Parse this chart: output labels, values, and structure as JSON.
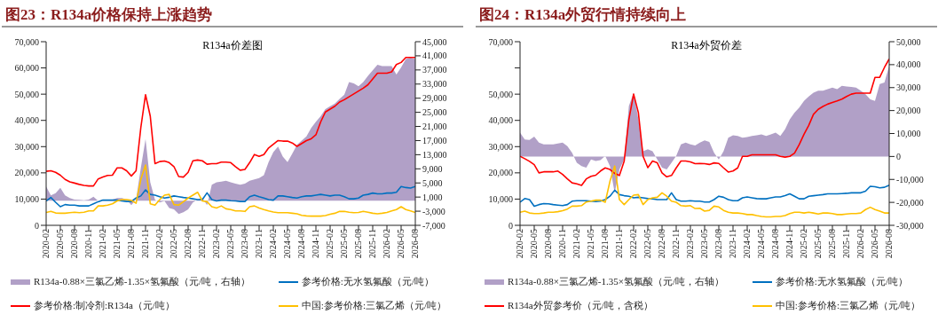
{
  "chart_data": [
    {
      "type": "line",
      "title": "图23：R134a价格保持上涨趋势",
      "subtitle": "R134a价差图",
      "legend": "bottom",
      "x": [
        "2020-02",
        "2020-03",
        "2020-04",
        "2020-05",
        "2020-06",
        "2020-07",
        "2020-08",
        "2020-09",
        "2020-10",
        "2020-11",
        "2020-12",
        "2021-01",
        "2021-02",
        "2021-03",
        "2021-04",
        "2021-05",
        "2021-06",
        "2021-07",
        "2021-08",
        "2021-09",
        "2021-10",
        "2021-11",
        "2021-12",
        "2022-01",
        "2022-02",
        "2022-03",
        "2022-04",
        "2022-05",
        "2022-06",
        "2022-07",
        "2022-08",
        "2022-09",
        "2022-10",
        "2022-11",
        "2022-12",
        "2023-01",
        "2023-02",
        "2023-03",
        "2023-04",
        "2023-05",
        "2023-06",
        "2023-07",
        "2023-08",
        "2023-09",
        "2023-10",
        "2023-11",
        "2023-12",
        "2024-01",
        "2024-02",
        "2024-03",
        "2024-04",
        "2024-05",
        "2024-06",
        "2024-07",
        "2024-08",
        "2024-09",
        "2024-10",
        "2024-11",
        "2024-12",
        "2025-01",
        "2025-02",
        "2025-03",
        "2025-04",
        "2025-05",
        "2025-06",
        "2025-07",
        "2025-08",
        "2025-09",
        "2025-10",
        "2025-11",
        "2025-12",
        "2026-01",
        "2026-02",
        "2026-03",
        "2026-04",
        "2026-05",
        "2026-06",
        "2026-07",
        "2026-08"
      ],
      "xlim": [
        "2020-02",
        "2026-08"
      ],
      "xticks": [
        "2020-02",
        "2020-05",
        "2020-08",
        "2020-11",
        "2021-02",
        "2021-05",
        "2021-08",
        "2021-11",
        "2022-02",
        "2022-05",
        "2022-08",
        "2022-11",
        "2023-02",
        "2023-05",
        "2023-08",
        "2023-11",
        "2024-02",
        "2024-05",
        "2024-08",
        "2024-11",
        "2025-02",
        "2025-05",
        "2025-08",
        "2025-11",
        "2026-02",
        "2026-05",
        "2026-08"
      ],
      "ylim": [
        0,
        70000
      ],
      "yticks": [
        0,
        {
          "value": 10000,
          "label": "10,000"
        },
        {
          "value": 20000,
          "label": "20,000"
        },
        {
          "value": 30000,
          "label": "30,000"
        },
        {
          "value": 40000,
          "label": "40,000"
        },
        {
          "value": 50000,
          "label": "50,000"
        },
        {
          "value": 60000,
          "label": "60,000"
        },
        {
          "value": 70000,
          "label": "70,000"
        }
      ],
      "y2lim": [
        -7000,
        45000
      ],
      "y2ticks": [
        {
          "value": -7000,
          "label": "-7,000"
        },
        {
          "value": -3000,
          "label": "-3,000"
        },
        {
          "value": 1000,
          "label": "1,000"
        },
        {
          "value": 5000,
          "label": "5,000"
        },
        {
          "value": 9000,
          "label": "9,000"
        },
        {
          "value": 13000,
          "label": "13,000"
        },
        {
          "value": 17000,
          "label": "17,000"
        },
        {
          "value": 21000,
          "label": "21,000"
        },
        {
          "value": 25000,
          "label": "25,000"
        },
        {
          "value": 29000,
          "label": "29,000"
        },
        {
          "value": 33000,
          "label": "33,000"
        },
        {
          "value": 37000,
          "label": "37,000"
        },
        {
          "value": 41000,
          "label": "41,000"
        },
        {
          "value": 45000,
          "label": "45,000"
        }
      ],
      "series": [
        {
          "name": "R134a-0.88×三氯乙烯-1.35×氢氟酸（元/吨，右轴）",
          "type": "area",
          "axis": "y2",
          "color": "#b1a0c7",
          "values": [
            4000,
            1500,
            2100,
            3600,
            1500,
            700,
            300,
            200,
            100,
            300,
            1100,
            -100,
            300,
            300,
            300,
            700,
            700,
            300,
            -1300,
            300,
            9200,
            17400,
            5200,
            200,
            -500,
            -100,
            -2100,
            -2500,
            -3800,
            -3300,
            -2500,
            -500,
            300,
            700,
            -1300,
            4500,
            5200,
            5400,
            5600,
            5200,
            4800,
            4500,
            4800,
            5600,
            6000,
            6400,
            7200,
            10900,
            13700,
            15300,
            12500,
            10900,
            13300,
            15800,
            17000,
            18200,
            20600,
            22300,
            23900,
            25900,
            26700,
            27500,
            28800,
            30000,
            33600,
            33200,
            32400,
            33600,
            35300,
            36900,
            38500,
            38100,
            38100,
            38100,
            35700,
            37700,
            40100,
            40500,
            40100
          ]
        },
        {
          "name": "参考价格:无水氢氟酸（元/吨）",
          "color": "#0070c0",
          "values": [
            9300,
            10600,
            8800,
            7100,
            7900,
            7700,
            7700,
            7400,
            7400,
            7400,
            8200,
            9000,
            9600,
            9600,
            9600,
            9600,
            9300,
            9100,
            9100,
            10400,
            11200,
            13500,
            11800,
            11500,
            10900,
            10400,
            10700,
            11200,
            10900,
            10600,
            10400,
            10100,
            9800,
            9800,
            12400,
            9800,
            9300,
            9600,
            9600,
            9400,
            9300,
            9100,
            9100,
            10900,
            11500,
            10900,
            10400,
            9800,
            9600,
            11200,
            11200,
            10900,
            10600,
            10400,
            10900,
            11200,
            11200,
            11500,
            11800,
            11500,
            11200,
            11500,
            11500,
            10900,
            10100,
            10100,
            10400,
            11500,
            11800,
            12300,
            12000,
            12000,
            12300,
            12300,
            12600,
            14800,
            14400,
            14200,
            14800
          ]
        },
        {
          "name": "参考价格:制冷剂:R134a（元/吨）",
          "color": "#ff0000",
          "values": [
            20600,
            20800,
            20200,
            19100,
            17500,
            16600,
            16100,
            15600,
            15200,
            15000,
            15000,
            17700,
            18400,
            19000,
            19100,
            21900,
            21900,
            20800,
            18800,
            20800,
            37200,
            49800,
            41600,
            23500,
            24300,
            24500,
            23900,
            22400,
            18600,
            18400,
            20200,
            24600,
            24900,
            24600,
            23300,
            23500,
            23500,
            24100,
            24100,
            23900,
            22400,
            21000,
            21300,
            23900,
            27000,
            26300,
            27000,
            29500,
            30900,
            32300,
            32100,
            32100,
            31400,
            30100,
            31200,
            32300,
            33000,
            34500,
            39400,
            43200,
            44300,
            45400,
            47000,
            47900,
            49000,
            50100,
            51200,
            52300,
            53600,
            55800,
            58000,
            58000,
            58000,
            58500,
            61300,
            62100,
            64000,
            64000,
            64000
          ]
        },
        {
          "name": "中国:参考价格:三氯乙烯（元/吨）",
          "color": "#ffc000",
          "values": [
            4900,
            5300,
            4700,
            4600,
            4600,
            4800,
            5000,
            4800,
            5000,
            5500,
            5500,
            7400,
            7400,
            7700,
            8200,
            9300,
            9800,
            9800,
            9500,
            8400,
            17500,
            23000,
            8200,
            7700,
            9800,
            11500,
            11800,
            7900,
            7700,
            9000,
            10400,
            11500,
            12600,
            9300,
            9000,
            7100,
            6600,
            7400,
            6300,
            6000,
            5500,
            5500,
            5300,
            7100,
            7400,
            6600,
            6000,
            5500,
            5100,
            4800,
            4800,
            4800,
            4600,
            4400,
            3800,
            3600,
            3500,
            3500,
            3500,
            3700,
            4200,
            4600,
            5300,
            5300,
            5000,
            4800,
            4900,
            5300,
            5000,
            4600,
            4400,
            4600,
            4900,
            5500,
            6000,
            7100,
            6000,
            5500,
            4900
          ]
        }
      ]
    },
    {
      "type": "line",
      "title": "图24：R134a外贸行情持续向上",
      "subtitle": "R134a外贸价差",
      "legend": "bottom",
      "x": [
        "2020-02",
        "2020-03",
        "2020-04",
        "2020-05",
        "2020-06",
        "2020-07",
        "2020-08",
        "2020-09",
        "2020-10",
        "2020-11",
        "2020-12",
        "2021-01",
        "2021-02",
        "2021-03",
        "2021-04",
        "2021-05",
        "2021-06",
        "2021-07",
        "2021-08",
        "2021-09",
        "2021-10",
        "2021-11",
        "2021-12",
        "2022-01",
        "2022-02",
        "2022-03",
        "2022-04",
        "2022-05",
        "2022-06",
        "2022-07",
        "2022-08",
        "2022-09",
        "2022-10",
        "2022-11",
        "2022-12",
        "2023-01",
        "2023-02",
        "2023-03",
        "2023-04",
        "2023-05",
        "2023-06",
        "2023-07",
        "2023-08",
        "2023-09",
        "2023-10",
        "2023-11",
        "2023-12",
        "2024-01",
        "2024-02",
        "2024-03",
        "2024-04",
        "2024-05",
        "2024-06",
        "2024-07",
        "2024-08",
        "2024-09",
        "2024-10",
        "2024-11",
        "2024-12",
        "2025-01",
        "2025-02",
        "2025-03",
        "2025-04",
        "2025-05",
        "2025-06",
        "2025-07",
        "2025-08",
        "2025-09",
        "2025-10",
        "2025-11",
        "2025-12",
        "2026-01",
        "2026-02",
        "2026-03",
        "2026-04",
        "2026-05",
        "2026-06",
        "2026-07",
        "2026-08"
      ],
      "xlim": [
        "2020-02",
        "2026-08"
      ],
      "xticks": [
        "2020-02",
        "2020-05",
        "2020-08",
        "2020-11",
        "2021-02",
        "2021-05",
        "2021-08",
        "2021-11",
        "2022-02",
        "2022-05",
        "2022-08",
        "2022-11",
        "2023-02",
        "2023-05",
        "2023-08",
        "2023-11",
        "2024-02",
        "2024-05",
        "2024-08",
        "2024-11",
        "2025-02",
        "2025-05",
        "2025-08",
        "2025-11",
        "2026-02",
        "2026-05",
        "2026-08"
      ],
      "ylim": [
        0,
        70000
      ],
      "yticks": [
        0,
        {
          "value": 10000,
          "label": "10,000"
        },
        {
          "value": 20000,
          "label": "20,000"
        },
        {
          "value": 30000,
          "label": "30,000"
        },
        {
          "value": 40000,
          "label": "40,000"
        },
        {
          "value": 50000,
          "label": "50,000"
        },
        {
          "value": 60000,
          "label": null
        },
        {
          "value": 70000,
          "label": "70,000"
        }
      ],
      "y2lim": [
        -30000,
        50000
      ],
      "y2ticks": [
        {
          "value": -30000,
          "label": "-30,000"
        },
        {
          "value": -20000,
          "label": "-20,000"
        },
        {
          "value": -10000,
          "label": "-10,000"
        },
        0,
        {
          "value": 10000,
          "label": "10,000"
        },
        {
          "value": 20000,
          "label": "20,000"
        },
        {
          "value": 30000,
          "label": "30,000"
        },
        {
          "value": 40000,
          "label": "40,000"
        },
        {
          "value": 50000,
          "label": "50,000"
        }
      ],
      "series": [
        {
          "name": "R134a-0.88×三氯乙烯-1.35×氢氟酸（元/吨，右轴）",
          "type": "area",
          "axis": "y2",
          "color": "#b1a0c7",
          "values": [
            10400,
            7400,
            7200,
            8600,
            6000,
            5300,
            5300,
            5300,
            5700,
            6000,
            4500,
            1600,
            -2800,
            -4200,
            -4900,
            -1300,
            -2000,
            -1600,
            200,
            -4200,
            -15900,
            -5700,
            -1300,
            22000,
            27800,
            16200,
            2300,
            3100,
            2300,
            -1300,
            -4900,
            -5700,
            -2800,
            200,
            5300,
            6000,
            5300,
            4800,
            6000,
            7000,
            6300,
            1600,
            -1300,
            2300,
            8200,
            9200,
            8900,
            8200,
            8500,
            8900,
            9200,
            9600,
            8900,
            9600,
            10400,
            8900,
            11800,
            16200,
            19100,
            21300,
            24200,
            26100,
            27800,
            28600,
            28600,
            29300,
            30000,
            29300,
            30800,
            30500,
            30300,
            30000,
            28600,
            27100,
            24900,
            24200,
            31500,
            32200,
            39500
          ]
        },
        {
          "name": "参考价格:无水氢氟酸（元/吨）",
          "color": "#0070c0",
          "values": [
            8800,
            10200,
            9800,
            7300,
            7900,
            8300,
            8200,
            7900,
            7700,
            7500,
            7900,
            9200,
            9400,
            9400,
            9400,
            9200,
            9100,
            9200,
            9800,
            11100,
            13400,
            11700,
            11300,
            11100,
            10500,
            10700,
            10500,
            10200,
            10100,
            9800,
            9800,
            9800,
            12400,
            9800,
            9200,
            9200,
            9400,
            9200,
            9200,
            8900,
            8900,
            9800,
            11100,
            10700,
            9800,
            9400,
            9400,
            10500,
            10800,
            10500,
            10200,
            10100,
            10100,
            10500,
            10800,
            10800,
            11300,
            12000,
            11100,
            10100,
            10100,
            11100,
            11300,
            11500,
            11700,
            12000,
            12000,
            12000,
            12100,
            12200,
            12400,
            12400,
            12400,
            13000,
            14900,
            14700,
            14300,
            14500,
            15300
          ]
        },
        {
          "name": "R134a外贸参考价（元/吨，含税）",
          "color": "#ff0000",
          "values": [
            26300,
            25400,
            24400,
            23100,
            20000,
            20400,
            20400,
            20400,
            20700,
            19400,
            17700,
            16200,
            15800,
            15200,
            17700,
            18700,
            19100,
            20700,
            21900,
            21300,
            19800,
            19000,
            24400,
            40400,
            50000,
            43000,
            26300,
            22000,
            24500,
            23800,
            20000,
            18500,
            19000,
            21900,
            24500,
            24500,
            24200,
            23500,
            23600,
            23500,
            23200,
            23800,
            23600,
            21900,
            20300,
            20700,
            21900,
            26300,
            26300,
            26900,
            26900,
            26900,
            26900,
            26900,
            26900,
            26300,
            26000,
            26300,
            27500,
            30800,
            34700,
            38100,
            42300,
            44200,
            45300,
            46200,
            46800,
            47400,
            48100,
            49100,
            50000,
            50400,
            50400,
            50400,
            50400,
            56400,
            56400,
            60200,
            63400
          ]
        },
        {
          "name": "中国:参考价格:三氯乙烯（元/吨）",
          "color": "#ffc000",
          "values": [
            5000,
            5400,
            4700,
            4500,
            4500,
            4700,
            5000,
            5000,
            5200,
            5600,
            6200,
            7300,
            7300,
            7500,
            8900,
            9200,
            9600,
            9600,
            8800,
            16800,
            22600,
            9800,
            7900,
            9800,
            11500,
            11700,
            7900,
            9800,
            10500,
            10700,
            12400,
            11100,
            9200,
            8800,
            7500,
            7300,
            7500,
            6400,
            6500,
            5400,
            5700,
            7300,
            7000,
            5700,
            5000,
            4700,
            4700,
            4500,
            4100,
            4100,
            3700,
            3400,
            3200,
            3200,
            3400,
            3400,
            3700,
            4500,
            5000,
            5000,
            4700,
            5000,
            4700,
            4300,
            4700,
            4700,
            4500,
            4100,
            4100,
            4300,
            4500,
            4500,
            4700,
            6000,
            6900,
            6000,
            5400,
            4700,
            4700
          ]
        }
      ]
    }
  ]
}
